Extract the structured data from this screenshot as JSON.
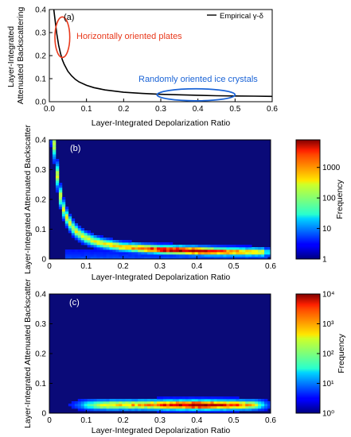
{
  "figure": {
    "background": "#ffffff",
    "heatmap_background": "#0a0a78"
  },
  "chart_data": [
    {
      "panel": "(a)",
      "type": "line",
      "xlabel": "Layer-Integrated Depolarization Ratio",
      "ylabel": "Layer-Integrated\nAttenuated Backscattering",
      "xlim": [
        0,
        0.6
      ],
      "ylim": [
        0,
        0.4
      ],
      "xticks": [
        "0.0",
        "0.1",
        "0.2",
        "0.3",
        "0.4",
        "0.5",
        "0.6"
      ],
      "yticks": [
        "0.0",
        "0.1",
        "0.2",
        "0.3",
        "0.4"
      ],
      "legend": {
        "position": "top-right",
        "entries": [
          "Empirical γ-δ"
        ]
      },
      "series": [
        {
          "name": "Empirical γ-δ",
          "color": "#000000",
          "x": [
            0.012,
            0.015,
            0.02,
            0.025,
            0.03,
            0.035,
            0.04,
            0.05,
            0.06,
            0.07,
            0.08,
            0.1,
            0.12,
            0.15,
            0.2,
            0.25,
            0.3,
            0.35,
            0.4,
            0.45,
            0.5,
            0.55,
            0.6
          ],
          "y": [
            0.4,
            0.36,
            0.296,
            0.245,
            0.21,
            0.182,
            0.162,
            0.132,
            0.112,
            0.097,
            0.086,
            0.071,
            0.061,
            0.051,
            0.041,
            0.036,
            0.032,
            0.03,
            0.028,
            0.026,
            0.025,
            0.024,
            0.023
          ]
        }
      ],
      "annotations": [
        {
          "text": "Horizontally oriented plates",
          "color": "#e8391c",
          "ellipse": {
            "cx": 0.035,
            "cy": 0.28,
            "rx": 0.02,
            "ry": 0.088
          }
        },
        {
          "text": "Randomly oriented ice crystals",
          "color": "#1a63d6",
          "ellipse": {
            "cx": 0.395,
            "cy": 0.03,
            "rx": 0.105,
            "ry": 0.026
          }
        }
      ]
    },
    {
      "panel": "(b)",
      "type": "heatmap",
      "xlabel": "Layer-Integrated Depolarization Ratio",
      "ylabel": "Layer-Integrated Attenuated Backscatter",
      "xlim": [
        0,
        0.6
      ],
      "ylim": [
        0,
        0.4
      ],
      "xticks": [
        "0",
        "0.1",
        "0.2",
        "0.3",
        "0.4",
        "0.5",
        "0.6"
      ],
      "yticks": [
        "0",
        "0.1",
        "0.2",
        "0.3",
        "0.4"
      ],
      "colorbar": {
        "label": "Frequency",
        "scale": "log",
        "range": [
          1,
          8000
        ],
        "ticks": [
          "1",
          "10",
          "100",
          "1000"
        ]
      },
      "density_model": "ridge along the empirical γ-δ curve, peak near x 0.3–0.45, y ≈ 0.03"
    },
    {
      "panel": "(c)",
      "type": "heatmap",
      "xlabel": "Layer-Integrated Depolarization Ratio",
      "ylabel": "Layer-Integrated Attenuated Backscatter",
      "xlim": [
        0,
        0.6
      ],
      "ylim": [
        0,
        0.4
      ],
      "xticks": [
        "0",
        "0.1",
        "0.2",
        "0.3",
        "0.4",
        "0.5",
        "0.6"
      ],
      "yticks": [
        "0",
        "0.1",
        "0.2",
        "0.3",
        "0.4"
      ],
      "colorbar": {
        "label": "Frequency",
        "scale": "log",
        "range": [
          1,
          10000
        ],
        "ticks": [
          "10⁰",
          "10¹",
          "10²",
          "10³",
          "10⁴"
        ]
      },
      "density_model": "horizontal band at y ≈ 0.03 spanning x 0.08–0.58, peak near x 0.35–0.45"
    }
  ]
}
